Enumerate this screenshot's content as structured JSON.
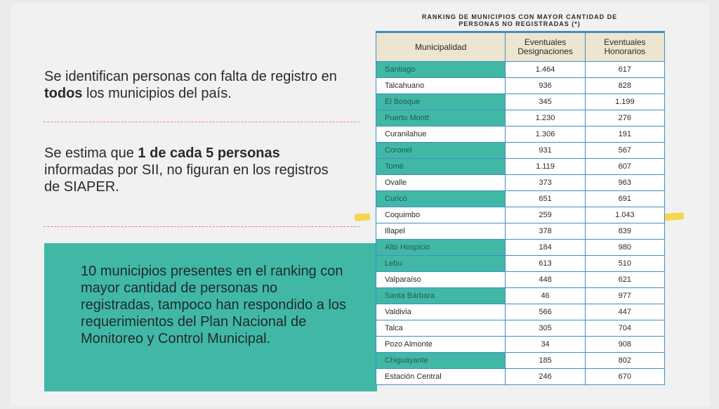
{
  "left": {
    "p1": {
      "pre": "Se identifican personas con falta de registro en ",
      "bold": "todos",
      "post": " los municipios del país."
    },
    "p2": {
      "bold": "1 de cada 5 personas",
      "post": " informadas por SII, no figuran en los registros de SIAPER.",
      "pre": "Se estima que "
    },
    "callout": "10 municipios presentes en el ranking con mayor cantidad de personas no registradas, tampoco han respondido a los requerimientos del Plan Nacional de Monitoreo y Control Municipal."
  },
  "table": {
    "title_line1": "RANKING DE MUNICIPIOS CON MAYOR CANTIDAD DE",
    "title_line2": "PERSONAS NO REGISTRADAS (*)",
    "headers": [
      "Municipalidad",
      "Eventuales Designaciones",
      "Eventuales Honorarios"
    ],
    "highlight_color": "#41b8a6",
    "rows": [
      {
        "muni": "Santiago",
        "designaciones": "1.464",
        "honorarios": "617",
        "highlight": true
      },
      {
        "muni": "Talcahuano",
        "designaciones": "936",
        "honorarios": "828",
        "highlight": false
      },
      {
        "muni": "El Bosque",
        "designaciones": "345",
        "honorarios": "1.199",
        "highlight": true
      },
      {
        "muni": "Puerto Montt",
        "designaciones": "1.230",
        "honorarios": "276",
        "highlight": true
      },
      {
        "muni": "Curanilahue",
        "designaciones": "1.306",
        "honorarios": "191",
        "highlight": false
      },
      {
        "muni": "Coronel",
        "designaciones": "931",
        "honorarios": "567",
        "highlight": true
      },
      {
        "muni": "Tomé",
        "designaciones": "1.119",
        "honorarios": "607",
        "highlight": true
      },
      {
        "muni": "Ovalle",
        "designaciones": "373",
        "honorarios": "963",
        "highlight": false
      },
      {
        "muni": "Curicó",
        "designaciones": "651",
        "honorarios": "691",
        "highlight": true
      },
      {
        "muni": "Coquimbo",
        "designaciones": "259",
        "honorarios": "1.043",
        "highlight": false
      },
      {
        "muni": "Illapel",
        "designaciones": "378",
        "honorarios": "839",
        "highlight": false
      },
      {
        "muni": "Alto Hospicio",
        "designaciones": "184",
        "honorarios": "980",
        "highlight": true
      },
      {
        "muni": "Lebu",
        "designaciones": "613",
        "honorarios": "510",
        "highlight": true
      },
      {
        "muni": "Valparaíso",
        "designaciones": "448",
        "honorarios": "621",
        "highlight": false
      },
      {
        "muni": "Santa Bárbara",
        "designaciones": "46",
        "honorarios": "977",
        "highlight": true
      },
      {
        "muni": "Valdivia",
        "designaciones": "566",
        "honorarios": "447",
        "highlight": false
      },
      {
        "muni": "Talca",
        "designaciones": "305",
        "honorarios": "704",
        "highlight": false
      },
      {
        "muni": "Pozo Almonte",
        "designaciones": "34",
        "honorarios": "908",
        "highlight": false
      },
      {
        "muni": "Chiguayante",
        "designaciones": "185",
        "honorarios": "802",
        "highlight": true
      },
      {
        "muni": "Estación Central",
        "designaciones": "246",
        "honorarios": "670",
        "highlight": false
      }
    ]
  }
}
